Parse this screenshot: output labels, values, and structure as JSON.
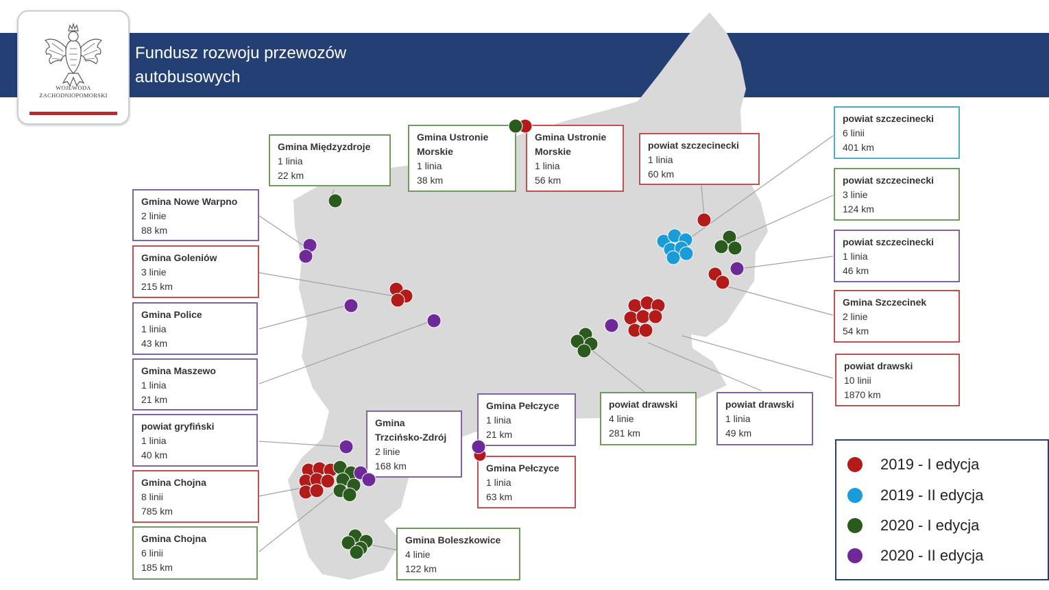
{
  "header": {
    "title": "Fundusz rozwoju przewozów autobusowych",
    "emblem_text": "WOJEWODA ZACHODNIOPOMORSKI",
    "emblem_icon": "white-eagle-coat-of-arms-icon"
  },
  "colors": {
    "banner": "#233f73",
    "map_fill": "#d9d9d9",
    "edycja_2019_I": "#b31b1b",
    "edycja_2019_II": "#1a9cd8",
    "edycja_2020_I": "#2b5a1f",
    "edycja_2020_II": "#6f2a9a"
  },
  "legend": [
    {
      "label": "2019 - I edycja",
      "color": "#b31b1b"
    },
    {
      "label": "2019 - II edycja",
      "color": "#1a9cd8"
    },
    {
      "label": "2020 - I edycja",
      "color": "#2b5a1f"
    },
    {
      "label": "2020 - II edycja",
      "color": "#6f2a9a"
    }
  ],
  "cards": [
    {
      "name": "Gmina Międzyzdroje",
      "lines": "1 linia",
      "km": "22 km",
      "edition": "2020 - I edycja"
    },
    {
      "name": "Gmina Ustronie Morskie",
      "lines": "1 linia",
      "km": "38 km",
      "edition": "2020 - I edycja"
    },
    {
      "name": "Gmina Ustronie Morskie",
      "lines": "1 linia",
      "km": "56 km",
      "edition": "2019 - I edycja"
    },
    {
      "name": "powiat szczecinecki",
      "lines": "1 linia",
      "km": "60 km",
      "edition": "2019 - I edycja"
    },
    {
      "name": "powiat szczecinecki",
      "lines": "6 linii",
      "km": "401 km",
      "edition": "2019 - II edycja"
    },
    {
      "name": "powiat szczecinecki",
      "lines": "3 linie",
      "km": "124 km",
      "edition": "2020 - I edycja"
    },
    {
      "name": "powiat szczecinecki",
      "lines": "1 linia",
      "km": "46 km",
      "edition": "2020 - II edycja"
    },
    {
      "name": "Gmina Szczecinek",
      "lines": "2 linie",
      "km": "54 km",
      "edition": "2019 - I edycja"
    },
    {
      "name": "powiat drawski",
      "lines": "10 linii",
      "km": "1870 km",
      "edition": "2019 - I edycja"
    },
    {
      "name": "powiat drawski",
      "lines": "1 linia",
      "km": "49 km",
      "edition": "2020 - II edycja"
    },
    {
      "name": "powiat drawski",
      "lines": "4 linie",
      "km": "281 km",
      "edition": "2020 - I edycja"
    },
    {
      "name": "Gmina Nowe Warpno",
      "lines": "2 linie",
      "km": "88 km",
      "edition": "2020 - II edycja"
    },
    {
      "name": "Gmina Goleniów",
      "lines": "3 linie",
      "km": "215 km",
      "edition": "2019 - I edycja"
    },
    {
      "name": "Gmina Police",
      "lines": "1 linia",
      "km": "43 km",
      "edition": "2020 - II edycja"
    },
    {
      "name": "Gmina Maszewo",
      "lines": "1 linia",
      "km": "21 km",
      "edition": "2020 - II edycja"
    },
    {
      "name": "powiat gryfiński",
      "lines": "1 linia",
      "km": "40 km",
      "edition": "2020 - II edycja"
    },
    {
      "name": "Gmina Chojna",
      "lines": "8 linii",
      "km": "785 km",
      "edition": "2019 - I edycja"
    },
    {
      "name": "Gmina Chojna",
      "lines": "6 linii",
      "km": "185 km",
      "edition": "2020 - I edycja"
    },
    {
      "name": "Gmina Trzcińsko-Zdrój",
      "lines": "2 linie",
      "km": "168 km",
      "edition": "2020 - II edycja"
    },
    {
      "name": "Gmina Pełczyce",
      "lines": "1 linia",
      "km": "21 km",
      "edition": "2020 - II edycja"
    },
    {
      "name": "Gmina Pełczyce",
      "lines": "1 linia",
      "km": "63 km",
      "edition": "2019 - I edycja"
    },
    {
      "name": "Gmina Boleszkowice",
      "lines": "4 linie",
      "km": "122 km",
      "edition": "2020 - I edycja"
    }
  ]
}
